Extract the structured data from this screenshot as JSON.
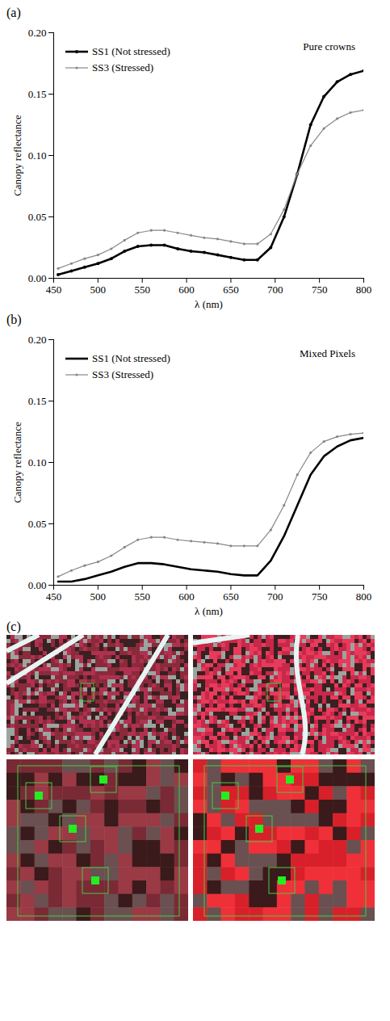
{
  "chart_data": [
    {
      "type": "line",
      "panel": "(a)",
      "annotation": "Pure crowns",
      "x_label": "λ (nm)",
      "y_label": "Canopy reflectance",
      "x": [
        455,
        470,
        485,
        500,
        515,
        530,
        545,
        560,
        575,
        590,
        605,
        620,
        635,
        650,
        665,
        680,
        695,
        710,
        725,
        740,
        755,
        770,
        785,
        800
      ],
      "series": [
        {
          "name": "SS1 (Not stressed)",
          "color": "#000000",
          "marker": "dot",
          "line_style": "solid",
          "values": [
            0.003,
            0.006,
            0.009,
            0.012,
            0.016,
            0.022,
            0.026,
            0.027,
            0.027,
            0.024,
            0.022,
            0.021,
            0.019,
            0.017,
            0.015,
            0.015,
            0.025,
            0.05,
            0.085,
            0.125,
            0.148,
            0.16,
            0.166,
            0.169
          ]
        },
        {
          "name": "SS3 (Stressed)",
          "color": "#888888",
          "marker": "dot",
          "line_style": "solid",
          "values": [
            0.008,
            0.012,
            0.016,
            0.019,
            0.024,
            0.031,
            0.037,
            0.039,
            0.039,
            0.037,
            0.035,
            0.033,
            0.032,
            0.03,
            0.028,
            0.028,
            0.036,
            0.056,
            0.085,
            0.108,
            0.122,
            0.13,
            0.135,
            0.137
          ]
        }
      ],
      "xlim": [
        450,
        800
      ],
      "xticks": [
        450,
        500,
        550,
        600,
        650,
        700,
        750,
        800
      ],
      "ylim": [
        0,
        0.2
      ],
      "yticks": [
        {
          "value": 0,
          "label": "0.00"
        },
        {
          "value": 0.05,
          "label": "0.05"
        },
        {
          "value": 0.1,
          "label": "0.10"
        },
        {
          "value": 0.15,
          "label": "0.15"
        },
        {
          "value": 0.2,
          "label": "0.20"
        }
      ],
      "legend": "top-left",
      "grid": false
    },
    {
      "type": "line",
      "panel": "(b)",
      "annotation": "Mixed Pixels",
      "x_label": "λ (nm)",
      "y_label": "Canopy reflectance",
      "x": [
        455,
        470,
        485,
        500,
        515,
        530,
        545,
        560,
        575,
        590,
        605,
        620,
        635,
        650,
        665,
        680,
        695,
        710,
        725,
        740,
        755,
        770,
        785,
        800
      ],
      "series": [
        {
          "name": "SS1 (Not stressed)",
          "color": "#000000",
          "marker": "none",
          "line_style": "solid",
          "values": [
            0.003,
            0.003,
            0.005,
            0.008,
            0.011,
            0.015,
            0.018,
            0.018,
            0.017,
            0.015,
            0.013,
            0.012,
            0.011,
            0.009,
            0.008,
            0.008,
            0.02,
            0.04,
            0.065,
            0.09,
            0.105,
            0.113,
            0.118,
            0.12
          ]
        },
        {
          "name": "SS3 (Stressed)",
          "color": "#888888",
          "marker": "dot",
          "line_style": "solid",
          "values": [
            0.007,
            0.012,
            0.016,
            0.019,
            0.024,
            0.031,
            0.037,
            0.039,
            0.039,
            0.037,
            0.036,
            0.035,
            0.034,
            0.032,
            0.032,
            0.032,
            0.045,
            0.065,
            0.09,
            0.108,
            0.117,
            0.121,
            0.123,
            0.124
          ]
        }
      ],
      "xlim": [
        450,
        800
      ],
      "xticks": [
        450,
        500,
        550,
        600,
        650,
        700,
        750,
        800
      ],
      "ylim": [
        0,
        0.2
      ],
      "yticks": [
        {
          "value": 0,
          "label": "0.00"
        },
        {
          "value": 0.05,
          "label": "0.05"
        },
        {
          "value": 0.1,
          "label": "0.10"
        },
        {
          "value": 0.15,
          "label": "0.15"
        },
        {
          "value": 0.2,
          "label": "0.20"
        }
      ],
      "legend": "top-left",
      "grid": false
    }
  ],
  "images": {
    "panel": "(c)"
  }
}
